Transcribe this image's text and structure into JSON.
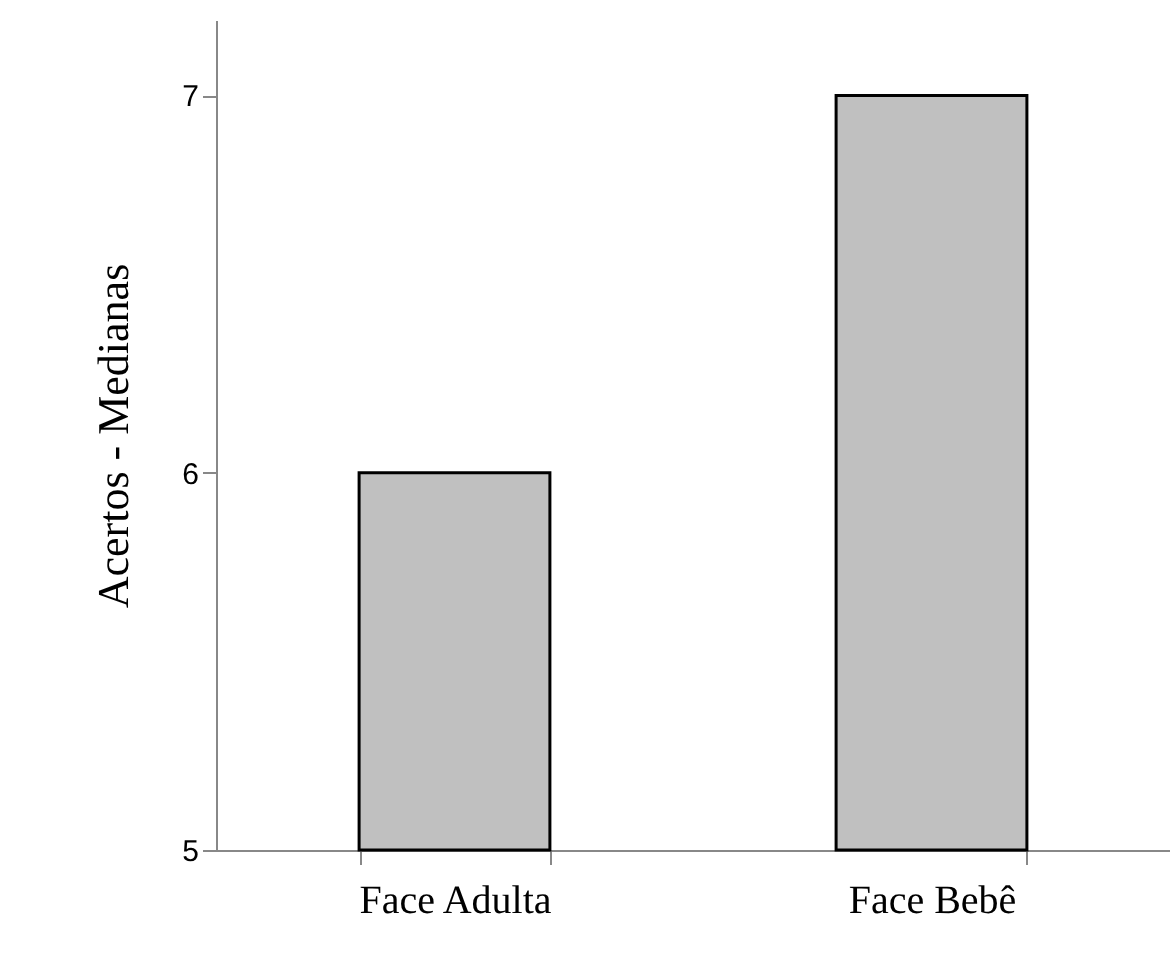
{
  "chart_data": {
    "type": "bar",
    "ylabel": "Acertos - Medianas",
    "categories": [
      "Face Adulta",
      "Face Bebê"
    ],
    "values": [
      6,
      7
    ],
    "color": "#c0c0c0",
    "ylim": [
      5,
      7.2
    ],
    "yticks": [
      5,
      6,
      7
    ]
  }
}
